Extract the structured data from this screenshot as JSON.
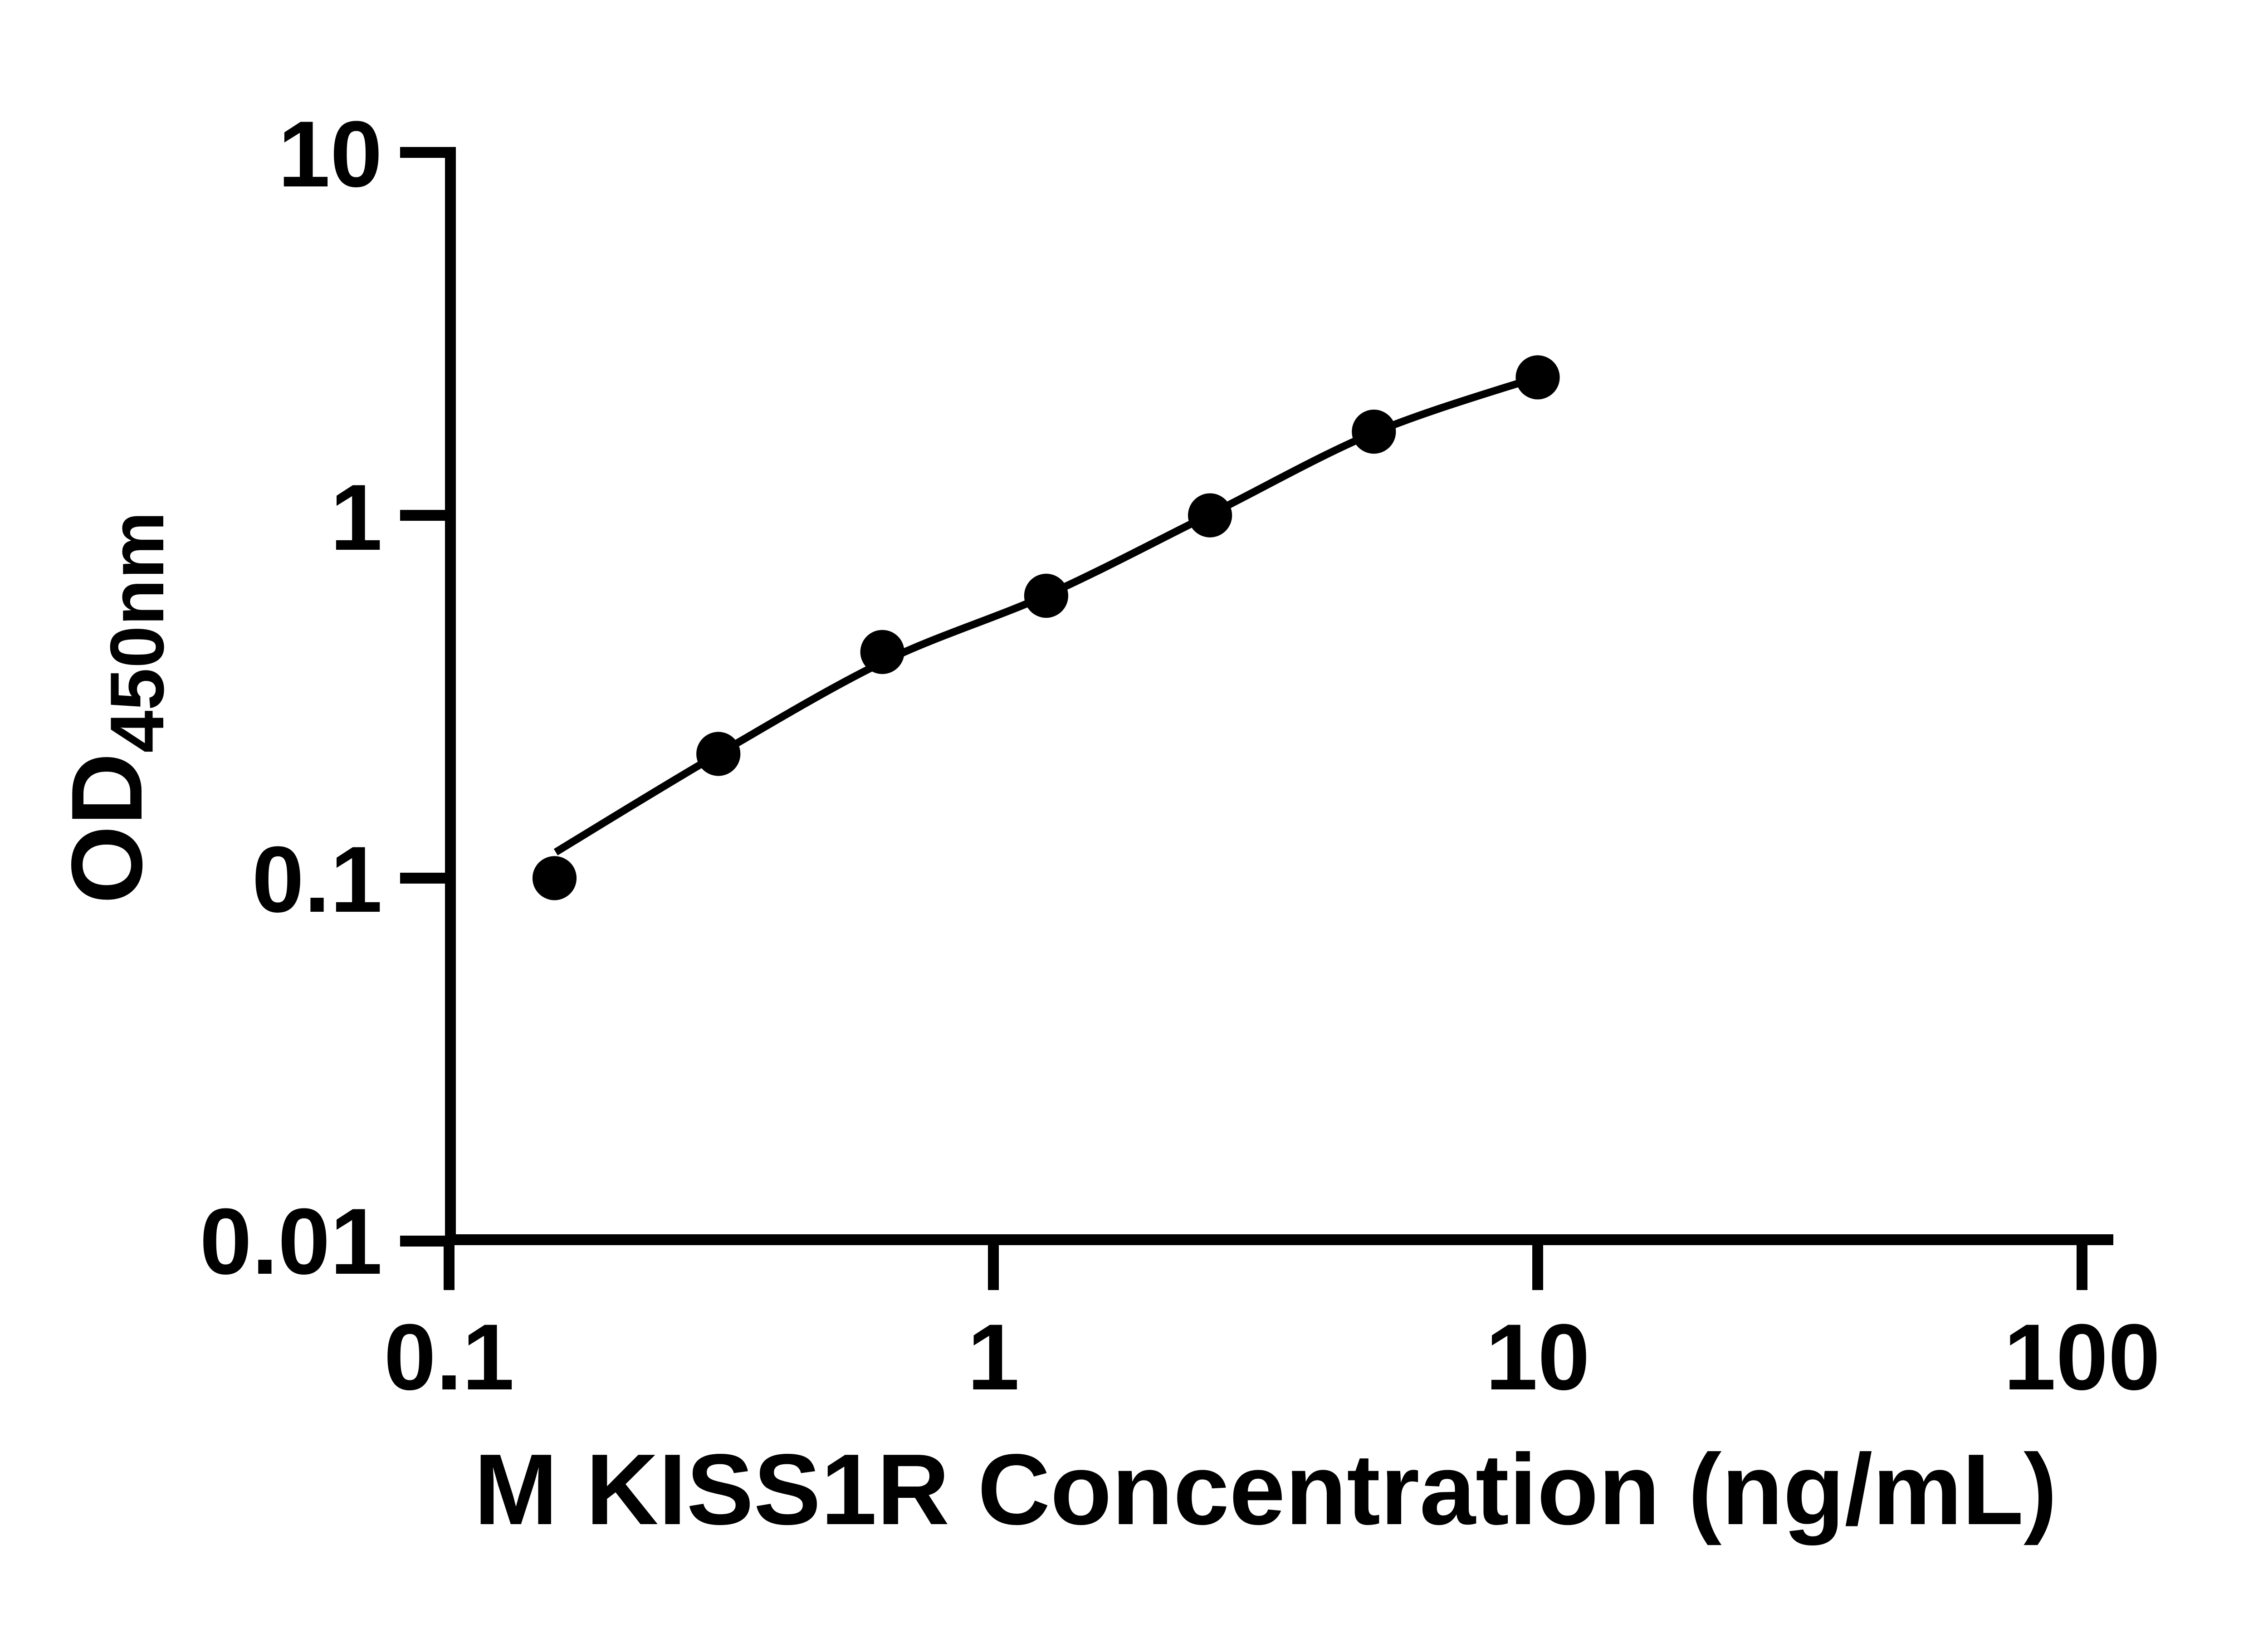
{
  "figure": {
    "background_color": "#ffffff",
    "ink_color": "#000000"
  },
  "chart_data": {
    "type": "scatter",
    "title": "",
    "xlabel": "M KISS1R Concentration (ng/mL)",
    "ylabel_main": "OD",
    "ylabel_sub": "450nm",
    "x_scale": "log10",
    "y_scale": "log10",
    "xlim": [
      0.1,
      100
    ],
    "ylim": [
      0.01,
      10
    ],
    "grid": false,
    "legend": false,
    "x_tick_labels": [
      "0.1",
      "1",
      "10",
      "100"
    ],
    "x_tick_values": [
      0.1,
      1,
      10,
      100
    ],
    "y_tick_labels": [
      "10",
      "1",
      "0.1",
      "0.01"
    ],
    "y_tick_values": [
      10,
      1,
      0.1,
      0.01
    ],
    "marker": {
      "shape": "circle",
      "color": "#000000",
      "radius_px": 16.2
    },
    "points": [
      {
        "x": 0.15625,
        "y": 0.1
      },
      {
        "x": 0.3125,
        "y": 0.22
      },
      {
        "x": 0.625,
        "y": 0.42
      },
      {
        "x": 1.25,
        "y": 0.6
      },
      {
        "x": 2.5,
        "y": 1.0
      },
      {
        "x": 5,
        "y": 1.7
      },
      {
        "x": 10,
        "y": 2.4
      }
    ],
    "fit_line": {
      "description": "standard-curve fit line",
      "color": "#000000",
      "samples": [
        {
          "x": 0.157,
          "y": 0.118
        },
        {
          "x": 0.3126,
          "y": 0.22
        },
        {
          "x": 0.631,
          "y": 0.396
        },
        {
          "x": 1.259,
          "y": 0.605
        },
        {
          "x": 2.5,
          "y": 1.006
        },
        {
          "x": 5.01,
          "y": 1.69
        },
        {
          "x": 10.06,
          "y": 2.41
        }
      ]
    }
  }
}
